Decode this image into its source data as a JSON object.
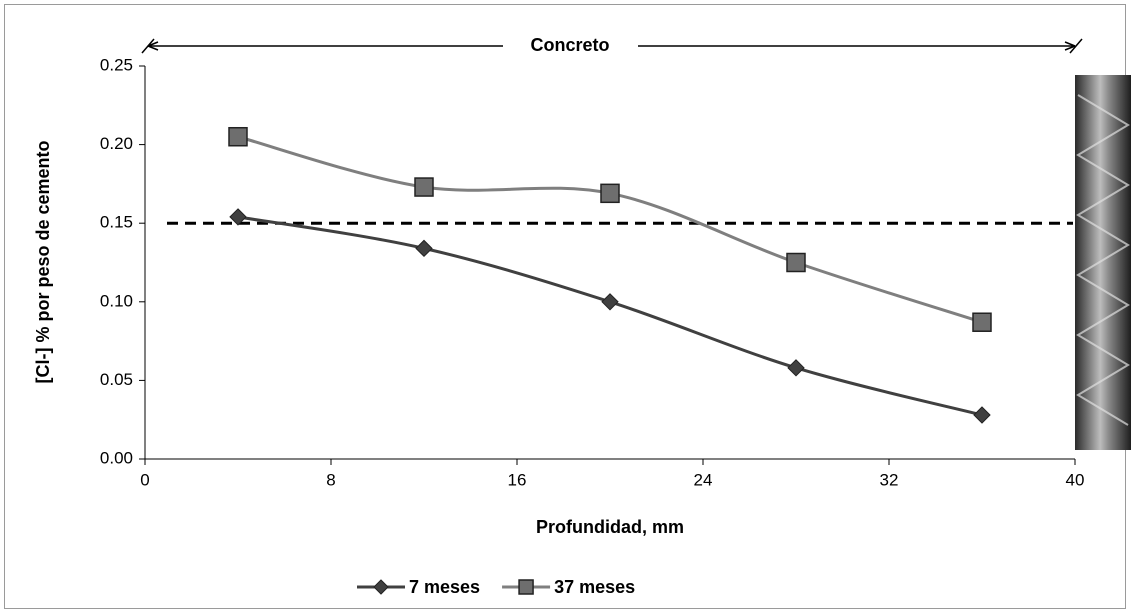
{
  "chart_data": {
    "type": "line",
    "annotation": "Concreto",
    "x_label": "Profundidad, mm",
    "y_label": "[Cl-] % por peso de cemento",
    "x": [
      4,
      12,
      20,
      28,
      36
    ],
    "series": [
      {
        "name": "7 meses",
        "color": "#404040",
        "marker": "diamond",
        "values": [
          0.154,
          0.134,
          0.1,
          0.058,
          0.028
        ]
      },
      {
        "name": "37 meses",
        "color": "#7f7f7f",
        "marker": "square",
        "values": [
          0.205,
          0.173,
          0.169,
          0.125,
          0.087
        ]
      }
    ],
    "xlim": [
      0,
      40
    ],
    "xticks": [
      0,
      8,
      16,
      24,
      32,
      40
    ],
    "ylim": [
      0,
      0.25
    ],
    "yticks": [
      {
        "value": 0,
        "label": "0.00"
      },
      0.05,
      {
        "value": 0.1,
        "label": "0.10"
      },
      0.15,
      {
        "value": 0.2,
        "label": "0.20"
      },
      0.25
    ],
    "reference_line": 0.15,
    "smooth": true,
    "grid": false,
    "legend": "bottom"
  }
}
